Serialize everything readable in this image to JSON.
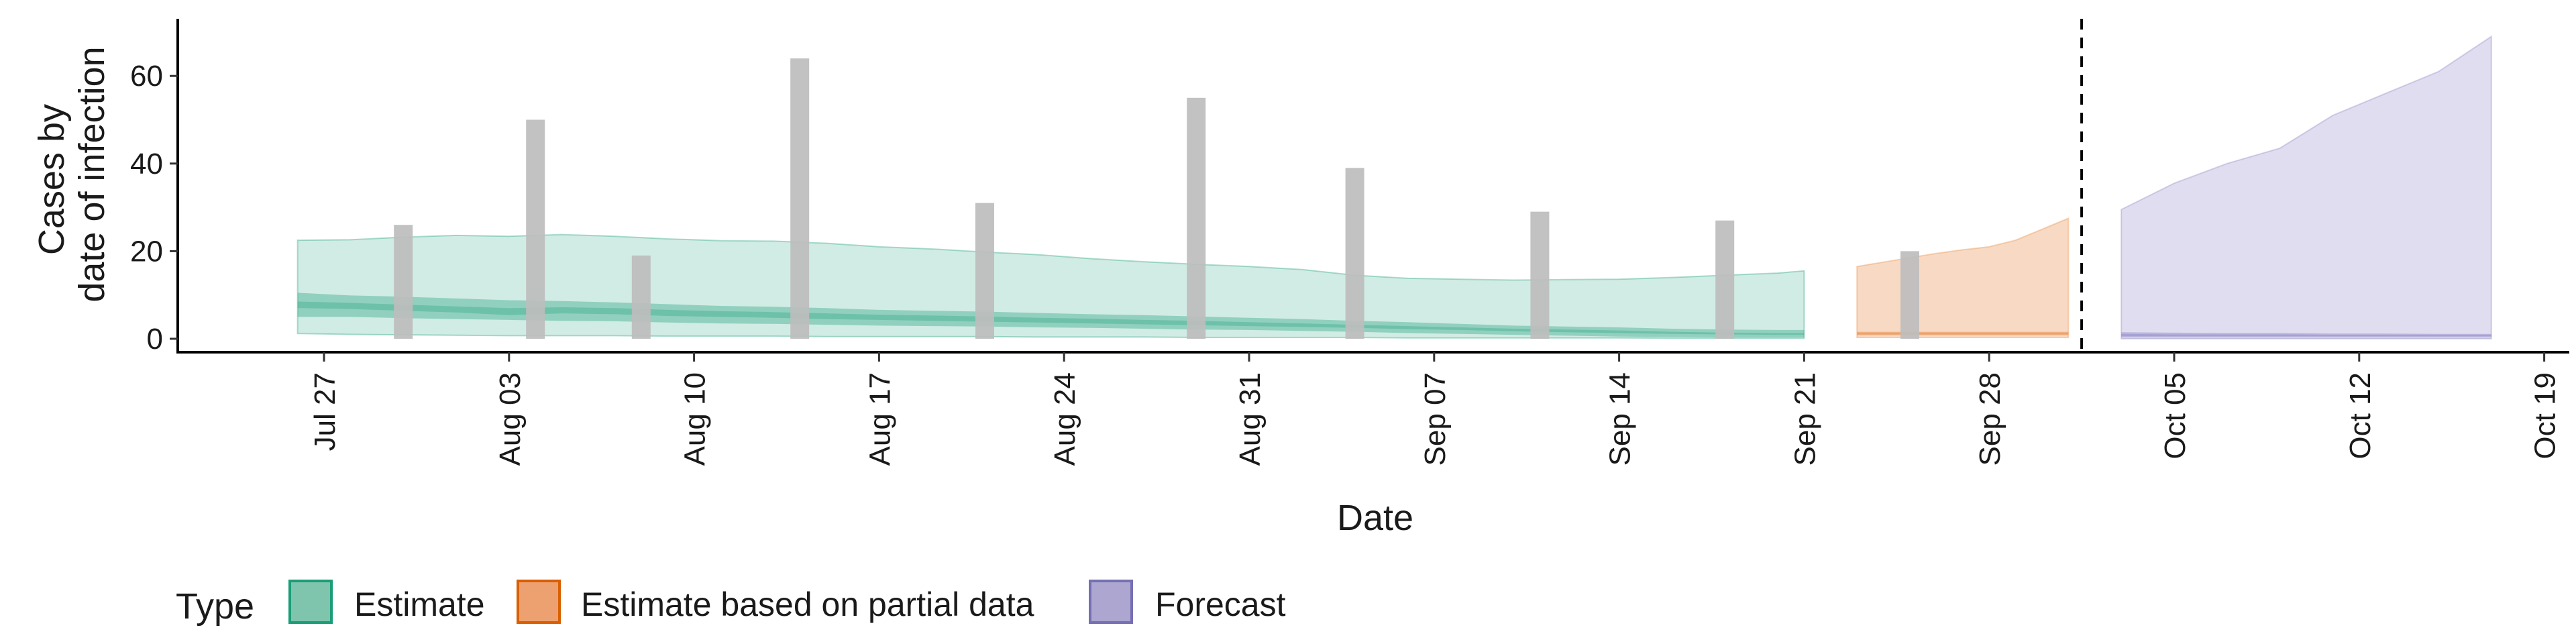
{
  "chart_data": {
    "type": "area",
    "xlabel": "Date",
    "ylabel": [
      "Cases by",
      "date of infection"
    ],
    "x_ticks": [
      "Jul 27",
      "Aug 03",
      "Aug 10",
      "Aug 17",
      "Aug 24",
      "Aug 31",
      "Sep 07",
      "Sep 14",
      "Sep 21",
      "Sep 28",
      "Oct 05",
      "Oct 12",
      "Oct 19"
    ],
    "y_ticks": [
      0,
      20,
      40,
      60
    ],
    "ylim": [
      -3,
      73
    ],
    "forecast_start": "2020-10-02",
    "legend": {
      "title": "Type",
      "placement": "bottom-left",
      "items": [
        {
          "label": "Estimate",
          "fill": "#7fc4ac",
          "stroke": "#1b9e77"
        },
        {
          "label": "Estimate based on partial data",
          "fill": "#eea170",
          "stroke": "#d95f02"
        },
        {
          "label": "Forecast",
          "fill": "#aca6d0",
          "stroke": "#7570b3"
        }
      ]
    },
    "colors": {
      "estimate": "#1b9e77",
      "partial": "#e7863d",
      "forecast": "#8c85c6",
      "observed_bar": "#bdbdbd"
    },
    "observed_cases": [
      {
        "date": "2020-07-30",
        "value": 26
      },
      {
        "date": "2020-08-04",
        "value": 50
      },
      {
        "date": "2020-08-08",
        "value": 19
      },
      {
        "date": "2020-08-14",
        "value": 64
      },
      {
        "date": "2020-08-21",
        "value": 31
      },
      {
        "date": "2020-08-29",
        "value": 55
      },
      {
        "date": "2020-09-04",
        "value": 39
      },
      {
        "date": "2020-09-11",
        "value": 29
      },
      {
        "date": "2020-09-18",
        "value": 27
      },
      {
        "date": "2020-09-25",
        "value": 20
      }
    ],
    "series": [
      {
        "name": "Estimate",
        "dates": [
          "2020-07-26",
          "2020-07-28",
          "2020-07-30",
          "2020-08-01",
          "2020-08-03",
          "2020-08-05",
          "2020-08-07",
          "2020-08-09",
          "2020-08-11",
          "2020-08-13",
          "2020-08-15",
          "2020-08-17",
          "2020-08-19",
          "2020-08-21",
          "2020-08-23",
          "2020-08-25",
          "2020-08-27",
          "2020-08-29",
          "2020-08-31",
          "2020-09-02",
          "2020-09-04",
          "2020-09-06",
          "2020-09-08",
          "2020-09-10",
          "2020-09-12",
          "2020-09-14",
          "2020-09-16",
          "2020-09-18",
          "2020-09-20",
          "2020-09-21"
        ],
        "lower90": [
          1.2,
          1.0,
          0.9,
          0.8,
          0.7,
          0.7,
          0.7,
          0.6,
          0.6,
          0.6,
          0.5,
          0.5,
          0.5,
          0.5,
          0.4,
          0.4,
          0.4,
          0.3,
          0.3,
          0.3,
          0.3,
          0.2,
          0.2,
          0.2,
          0.2,
          0.2,
          0.1,
          0.1,
          0.1,
          0.1
        ],
        "upper90": [
          22.5,
          22.6,
          23.2,
          23.6,
          23.4,
          23.8,
          23.4,
          22.8,
          22.4,
          22.3,
          21.8,
          21.0,
          20.5,
          19.8,
          19.2,
          18.3,
          17.6,
          17.0,
          16.5,
          15.8,
          14.5,
          13.8,
          13.6,
          13.4,
          13.5,
          13.6,
          14.0,
          14.5,
          15.0,
          15.5
        ],
        "lower50": [
          5.0,
          5.0,
          4.7,
          4.5,
          4.3,
          4.1,
          4.0,
          3.7,
          3.5,
          3.4,
          3.2,
          3.0,
          2.9,
          2.8,
          2.6,
          2.5,
          2.3,
          2.1,
          2.0,
          1.8,
          1.6,
          1.3,
          1.1,
          0.9,
          0.7,
          0.5,
          0.4,
          0.3,
          0.3,
          0.3
        ],
        "upper50": [
          10.5,
          9.9,
          9.6,
          9.2,
          8.8,
          8.6,
          8.3,
          7.9,
          7.5,
          7.3,
          7.0,
          6.6,
          6.4,
          6.2,
          5.9,
          5.6,
          5.4,
          5.1,
          4.8,
          4.5,
          4.1,
          3.8,
          3.4,
          3.0,
          2.8,
          2.6,
          2.3,
          2.1,
          2.0,
          2.0
        ],
        "lower20": [
          7.0,
          6.8,
          6.4,
          6.0,
          5.4,
          5.8,
          5.6,
          5.2,
          5.0,
          4.8,
          4.5,
          4.3,
          4.1,
          3.9,
          3.7,
          3.5,
          3.3,
          3.1,
          2.9,
          2.7,
          2.5,
          2.2,
          2.0,
          1.7,
          1.5,
          1.3,
          1.1,
          1.0,
          0.9,
          0.9
        ],
        "upper20": [
          8.5,
          8.2,
          7.8,
          7.4,
          7.0,
          7.2,
          7.0,
          6.6,
          6.3,
          6.1,
          5.8,
          5.5,
          5.3,
          5.1,
          4.8,
          4.6,
          4.3,
          4.1,
          3.8,
          3.5,
          3.2,
          2.9,
          2.6,
          2.3,
          2.1,
          1.9,
          1.6,
          1.4,
          1.3,
          1.3
        ]
      },
      {
        "name": "Estimate based on partial data",
        "dates": [
          "2020-09-23",
          "2020-09-24",
          "2020-09-25",
          "2020-09-26",
          "2020-09-27",
          "2020-09-28",
          "2020-09-29",
          "2020-09-30",
          "2020-10-01"
        ],
        "lower90": [
          0.3,
          0.3,
          0.3,
          0.3,
          0.3,
          0.3,
          0.3,
          0.3,
          0.3
        ],
        "upper90": [
          16.5,
          17.5,
          18.5,
          19.5,
          20.3,
          21.0,
          22.5,
          25.0,
          27.5
        ],
        "lower50": [
          0.8,
          0.8,
          0.8,
          0.8,
          0.8,
          0.8,
          0.8,
          0.8,
          0.8
        ],
        "upper50": [
          1.6,
          1.6,
          1.6,
          1.6,
          1.6,
          1.6,
          1.6,
          1.6,
          1.6
        ],
        "lower20": [
          1.0,
          1.0,
          1.0,
          1.0,
          1.0,
          1.0,
          1.0,
          1.0,
          1.0
        ],
        "upper20": [
          1.4,
          1.4,
          1.4,
          1.4,
          1.4,
          1.4,
          1.4,
          1.4,
          1.4
        ]
      },
      {
        "name": "Forecast",
        "dates": [
          "2020-10-03",
          "2020-10-05",
          "2020-10-07",
          "2020-10-09",
          "2020-10-11",
          "2020-10-13",
          "2020-10-15",
          "2020-10-17"
        ],
        "lower90": [
          0.0,
          0.0,
          0.0,
          0.0,
          0.0,
          0.0,
          0.0,
          0.0
        ],
        "upper90": [
          29.5,
          35.5,
          40.0,
          43.5,
          51.0,
          56.0,
          61.0,
          69.0
        ],
        "lower50": [
          0.3,
          0.3,
          0.3,
          0.3,
          0.3,
          0.3,
          0.3,
          0.3
        ],
        "upper50": [
          1.5,
          1.4,
          1.3,
          1.3,
          1.2,
          1.2,
          1.1,
          1.1
        ],
        "lower20": [
          0.6,
          0.6,
          0.6,
          0.6,
          0.6,
          0.6,
          0.6,
          0.6
        ],
        "upper20": [
          1.1,
          1.0,
          1.0,
          1.0,
          0.9,
          0.9,
          0.9,
          0.9
        ]
      }
    ]
  }
}
